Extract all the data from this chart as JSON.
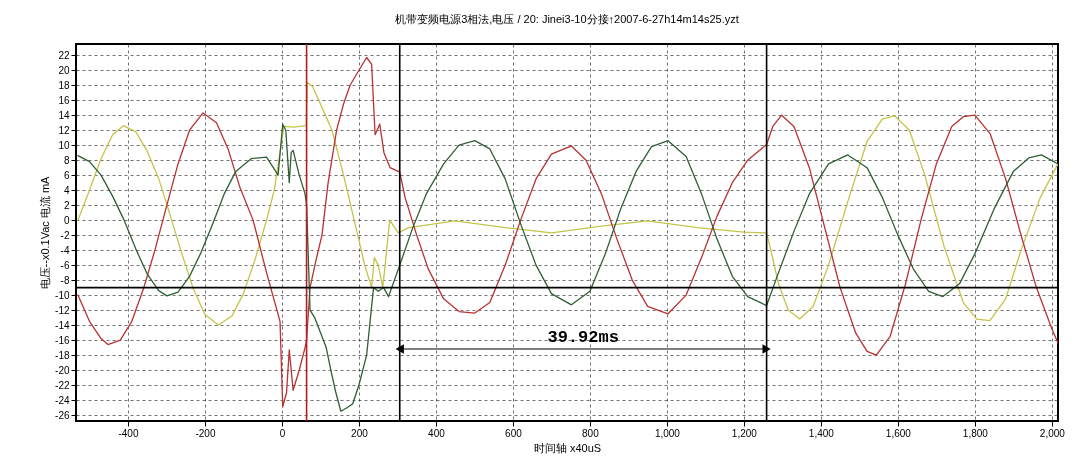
{
  "chart_data": {
    "type": "line",
    "title": "机带变频电源3相法,电压 / 20:  Jinei3-10分接↑2007-6-27h14m14s25.yzt",
    "xlabel": "时间轴 x40uS",
    "ylabel": "电压--x0.1Vac    电流 mA",
    "xlim": [
      -535,
      2016
    ],
    "ylim": [
      -26.8,
      23.5
    ],
    "xticks": [
      -400,
      -200,
      0,
      200,
      400,
      600,
      800,
      {
        "value": 1000,
        "label": "1,000"
      },
      {
        "value": 1200,
        "label": "1,200"
      },
      {
        "value": 1400,
        "label": "1,400"
      },
      {
        "value": 1600,
        "label": "1,600"
      },
      {
        "value": 1800,
        "label": "1,800"
      },
      {
        "value": 2000,
        "label": "2,000"
      }
    ],
    "yticks": [
      -26,
      -24,
      -22,
      -20,
      -18,
      -16,
      -14,
      -12,
      -10,
      -8,
      -6,
      -4,
      -2,
      0,
      2,
      4,
      6,
      8,
      10,
      12,
      14,
      16,
      18,
      20,
      22
    ],
    "grid": true,
    "line_style": "solid",
    "marker": "none",
    "series": [
      {
        "color": "#c4c44a",
        "x": [
          -530,
          -500,
          -470,
          -440,
          -412,
          -380,
          -350,
          -320,
          -290,
          -260,
          -230,
          -200,
          -165,
          -130,
          -100,
          -70,
          -40,
          -20,
          -5,
          5,
          30,
          63,
          66,
          80,
          100,
          130,
          160,
          190,
          215,
          233,
          240,
          250,
          262,
          280,
          302,
          330,
          450,
          580,
          700,
          830,
          950,
          1080,
          1200,
          1259,
          1270,
          1290,
          1315,
          1345,
          1380,
          1420,
          1470,
          1520,
          1560,
          1592,
          1630,
          1670,
          1720,
          1770,
          1805,
          1839,
          1880,
          1920,
          1970,
          2016
        ],
        "values": [
          0,
          4,
          8.2,
          11.4,
          12.6,
          11.8,
          9.2,
          5.5,
          0.6,
          -4.5,
          -9.2,
          -12.6,
          -14,
          -12.8,
          -9.8,
          -5.3,
          0,
          4,
          9,
          12.5,
          12.4,
          12.6,
          18.4,
          17.8,
          15.5,
          12,
          6,
          -0.5,
          -6,
          -9,
          -5,
          -6,
          -9,
          0,
          -1.7,
          -1,
          -0.1,
          -1,
          -1.7,
          -0.8,
          -0.1,
          -1,
          -1.6,
          -1.7,
          -4,
          -8.5,
          -12,
          -13.2,
          -11.5,
          -6,
          2.5,
          10.5,
          13.5,
          13.9,
          12,
          6,
          -3.5,
          -11,
          -13.2,
          -13.4,
          -10.5,
          -4,
          3,
          7.5
        ]
      },
      {
        "color": "#b83232",
        "x": [
          -530,
          -500,
          -470,
          -452,
          -420,
          -390,
          -360,
          -330,
          -300,
          -270,
          -240,
          -205,
          -170,
          -140,
          -110,
          -75,
          -40,
          -5,
          2,
          12,
          19,
          29,
          45,
          60,
          64,
          73,
          90,
          104,
          120,
          142,
          160,
          177,
          200,
          220,
          233,
          242,
          254,
          265,
          281,
          306,
          320,
          350,
          380,
          420,
          460,
          501,
          540,
          580,
          620,
          660,
          700,
          752,
          790,
          830,
          870,
          910,
          950,
          1003,
          1050,
          1090,
          1130,
          1170,
          1210,
          1259,
          1275,
          1298,
          1330,
          1370,
          1410,
          1450,
          1490,
          1520,
          1544,
          1580,
          1620,
          1660,
          1700,
          1740,
          1770,
          1800,
          1840,
          1880,
          1920,
          1960,
          2000,
          2016
        ],
        "values": [
          -10,
          -13.5,
          -15.8,
          -16.6,
          -16,
          -13.5,
          -9.2,
          -4,
          1.8,
          7.5,
          12,
          14.3,
          13,
          9.5,
          4.5,
          0,
          -7,
          -13.5,
          -24.9,
          -23,
          -17.3,
          -22.7,
          -20,
          -17,
          -16,
          -9,
          -5,
          -2,
          5,
          12,
          15.5,
          18,
          20,
          21.7,
          20.8,
          11.4,
          12.8,
          9,
          7,
          6.4,
          3,
          -2,
          -6.5,
          -10.5,
          -12.2,
          -12.4,
          -11,
          -6,
          0,
          5.5,
          8.8,
          9.9,
          8,
          3.5,
          -2.5,
          -8,
          -11.5,
          -12.5,
          -10,
          -5,
          0.5,
          5,
          8,
          10.1,
          12.5,
          14,
          12.5,
          7,
          -1,
          -9,
          -15,
          -17.5,
          -18,
          -15.5,
          -8.5,
          0,
          7.5,
          12.5,
          13.8,
          14,
          11.5,
          5.5,
          -2,
          -9,
          -14.5,
          -16.4
        ]
      },
      {
        "color": "#2f5f35",
        "x": [
          -530,
          -500,
          -470,
          -440,
          -410,
          -380,
          -350,
          -320,
          -299,
          -270,
          -240,
          -210,
          -180,
          -150,
          -120,
          -80,
          -40,
          -10,
          2,
          10,
          19,
          24,
          29,
          45,
          60,
          64,
          73,
          85,
          100,
          115,
          127,
          140,
          153,
          170,
          184,
          200,
          220,
          238,
          250,
          264,
          277,
          306,
          340,
          375,
          420,
          460,
          501,
          540,
          580,
          620,
          660,
          700,
          752,
          800,
          840,
          880,
          920,
          960,
          1003,
          1050,
          1090,
          1130,
          1170,
          1210,
          1259,
          1290,
          1330,
          1370,
          1420,
          1470,
          1520,
          1560,
          1600,
          1640,
          1680,
          1717,
          1760,
          1800,
          1850,
          1900,
          1940,
          1973,
          2016
        ],
        "values": [
          8.6,
          7.8,
          6,
          3.2,
          0,
          -3.8,
          -7.2,
          -9.4,
          -10.1,
          -9.6,
          -7.5,
          -4.3,
          -0.5,
          3.5,
          6.5,
          8.2,
          8.4,
          6,
          12.8,
          12,
          5,
          9,
          9.3,
          6,
          3.5,
          2,
          -12,
          -13,
          -15,
          -17,
          -20,
          -23,
          -25.5,
          -25,
          -24.5,
          -22,
          -18,
          -9,
          -9.5,
          -9,
          -10.2,
          -6,
          -1,
          3.5,
          7.5,
          10,
          10.6,
          9.5,
          5.5,
          -0.5,
          -6,
          -9.8,
          -11.3,
          -9.5,
          -4.5,
          1.5,
          6.5,
          9.8,
          10.6,
          8.5,
          3.5,
          -2.5,
          -7.5,
          -10.2,
          -11.4,
          -7,
          -1.5,
          3.5,
          7.5,
          8.7,
          7,
          3,
          -2,
          -6.5,
          -9.5,
          -10.2,
          -8.5,
          -4.5,
          1.5,
          6.5,
          8.3,
          8.7,
          7.5
        ]
      }
    ],
    "ref_lines": [
      {
        "axis": "x",
        "value": 64,
        "color": "#b02020"
      },
      {
        "axis": "x",
        "value": 306,
        "color": "#000000"
      },
      {
        "axis": "x",
        "value": 1259,
        "color": "#000000"
      },
      {
        "axis": "y",
        "value": -9,
        "color": "#000000"
      }
    ],
    "annotations": [
      "39.92ms"
    ]
  }
}
